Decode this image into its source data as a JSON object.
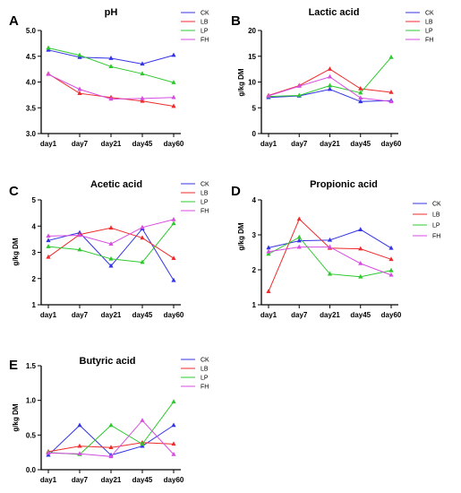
{
  "colors": {
    "CK": "#3333e6",
    "LB": "#ef2b2b",
    "LP": "#2ec82e",
    "FH": "#d64ee0"
  },
  "chart_data": [
    {
      "letter": "A",
      "title": "pH",
      "type": "line",
      "categories": [
        "day1",
        "day7",
        "day21",
        "day45",
        "day60"
      ],
      "ylabel": "",
      "ylim": [
        3.0,
        5.0
      ],
      "yticks": [
        "3.0",
        "3.5",
        "4.0",
        "4.5",
        "5.0"
      ],
      "legend_position": "top-right",
      "series": [
        {
          "name": "CK",
          "values": [
            4.62,
            4.48,
            4.46,
            4.35,
            4.52
          ]
        },
        {
          "name": "LB",
          "values": [
            4.16,
            3.78,
            3.7,
            3.63,
            3.53
          ]
        },
        {
          "name": "LP",
          "values": [
            4.66,
            4.52,
            4.3,
            4.16,
            3.99
          ]
        },
        {
          "name": "FH",
          "values": [
            4.15,
            3.86,
            3.67,
            3.68,
            3.7
          ]
        }
      ]
    },
    {
      "letter": "B",
      "title": "Lactic acid",
      "type": "line",
      "categories": [
        "day1",
        "day7",
        "day21",
        "day45",
        "day60"
      ],
      "ylabel": "g/kg DM",
      "ylim": [
        0,
        20
      ],
      "yticks": [
        "0",
        "5",
        "10",
        "15",
        "20"
      ],
      "legend_position": "top-right",
      "series": [
        {
          "name": "CK",
          "values": [
            7.0,
            7.3,
            8.6,
            6.2,
            6.4
          ]
        },
        {
          "name": "LB",
          "values": [
            7.4,
            9.3,
            12.5,
            8.7,
            8.0
          ]
        },
        {
          "name": "LP",
          "values": [
            7.2,
            7.4,
            9.3,
            7.9,
            14.8
          ]
        },
        {
          "name": "FH",
          "values": [
            7.3,
            9.2,
            11.0,
            6.9,
            6.2
          ]
        }
      ]
    },
    {
      "letter": "C",
      "title": "Acetic acid",
      "type": "line",
      "categories": [
        "day1",
        "day7",
        "day21",
        "day45",
        "day60"
      ],
      "ylabel": "g/kg DM",
      "ylim": [
        1,
        5
      ],
      "yticks": [
        "1",
        "2",
        "3",
        "4",
        "5"
      ],
      "legend_position": "top-right",
      "series": [
        {
          "name": "CK",
          "values": [
            3.45,
            3.75,
            2.48,
            3.9,
            1.93
          ]
        },
        {
          "name": "LB",
          "values": [
            2.82,
            3.68,
            3.93,
            3.55,
            2.77
          ]
        },
        {
          "name": "LP",
          "values": [
            3.22,
            3.1,
            2.75,
            2.62,
            4.1
          ]
        },
        {
          "name": "FH",
          "values": [
            3.62,
            3.65,
            3.32,
            3.95,
            4.25
          ]
        }
      ]
    },
    {
      "letter": "D",
      "title": "Propionic acid",
      "type": "line",
      "categories": [
        "day1",
        "day7",
        "day21",
        "day45",
        "day60"
      ],
      "ylabel": "g/kg DM",
      "ylim": [
        1,
        4
      ],
      "yticks": [
        "1",
        "2",
        "3",
        "4"
      ],
      "legend_position": "right",
      "series": [
        {
          "name": "CK",
          "values": [
            2.63,
            2.83,
            2.85,
            3.15,
            2.62
          ]
        },
        {
          "name": "LB",
          "values": [
            1.38,
            3.45,
            2.62,
            2.6,
            2.3
          ]
        },
        {
          "name": "LP",
          "values": [
            2.45,
            2.93,
            1.88,
            1.8,
            1.98
          ]
        },
        {
          "name": "FH",
          "values": [
            2.52,
            2.65,
            2.65,
            2.18,
            1.85
          ]
        }
      ]
    },
    {
      "letter": "E",
      "title": "Butyric acid",
      "type": "line",
      "categories": [
        "day1",
        "day7",
        "day21",
        "day45",
        "day60"
      ],
      "ylabel": "g/kg DM",
      "ylim": [
        0,
        1.5
      ],
      "yticks": [
        "0.0",
        "0.5",
        "1.0",
        "1.5"
      ],
      "legend_position": "top-right",
      "series": [
        {
          "name": "CK",
          "values": [
            0.21,
            0.64,
            0.21,
            0.34,
            0.64
          ]
        },
        {
          "name": "LB",
          "values": [
            0.26,
            0.34,
            0.32,
            0.39,
            0.37
          ]
        },
        {
          "name": "LP",
          "values": [
            0.25,
            0.22,
            0.64,
            0.37,
            0.98
          ]
        },
        {
          "name": "FH",
          "values": [
            0.24,
            0.23,
            0.19,
            0.71,
            0.22
          ]
        }
      ]
    }
  ]
}
